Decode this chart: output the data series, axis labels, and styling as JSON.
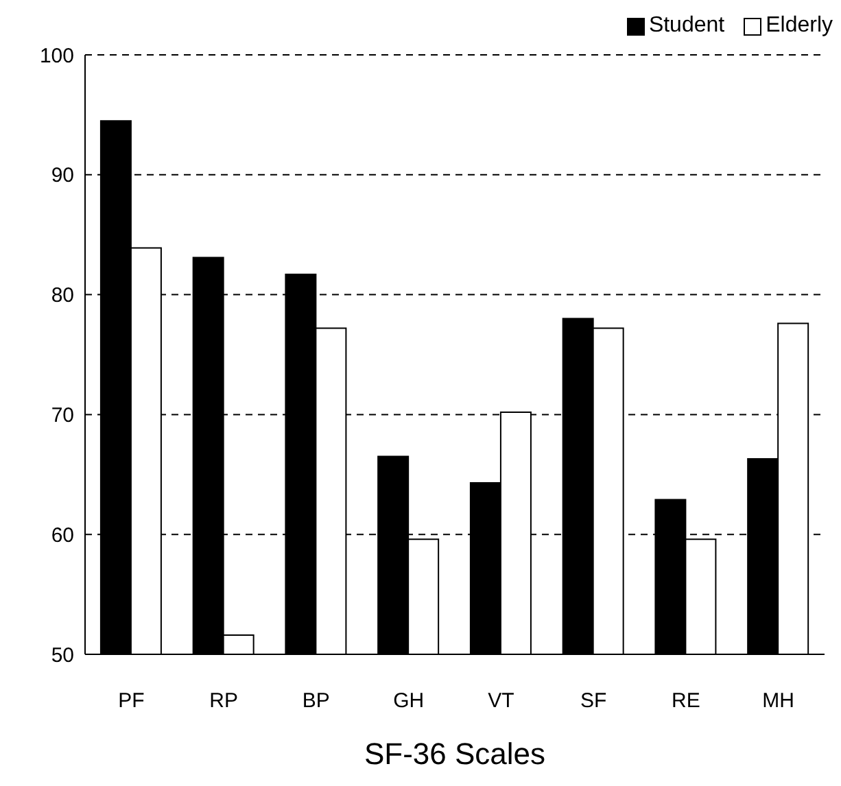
{
  "chart_data": {
    "type": "bar",
    "xlabel": "SF-36 Scales",
    "categories": [
      "PF",
      "RP",
      "BP",
      "GH",
      "VT",
      "SF",
      "RE",
      "MH"
    ],
    "series": [
      {
        "name": "Student",
        "color": "#000000",
        "values": [
          94.5,
          83.1,
          81.7,
          66.5,
          64.3,
          78.0,
          62.9,
          66.3
        ]
      },
      {
        "name": "Elderly",
        "color": "#ffffff",
        "values": [
          83.9,
          51.6,
          77.2,
          59.6,
          70.2,
          77.2,
          59.6,
          77.6
        ]
      }
    ],
    "ylim": [
      50,
      100
    ],
    "yticks": [
      50,
      60,
      70,
      80,
      90,
      100
    ],
    "grid": "y",
    "legend": "top right"
  }
}
